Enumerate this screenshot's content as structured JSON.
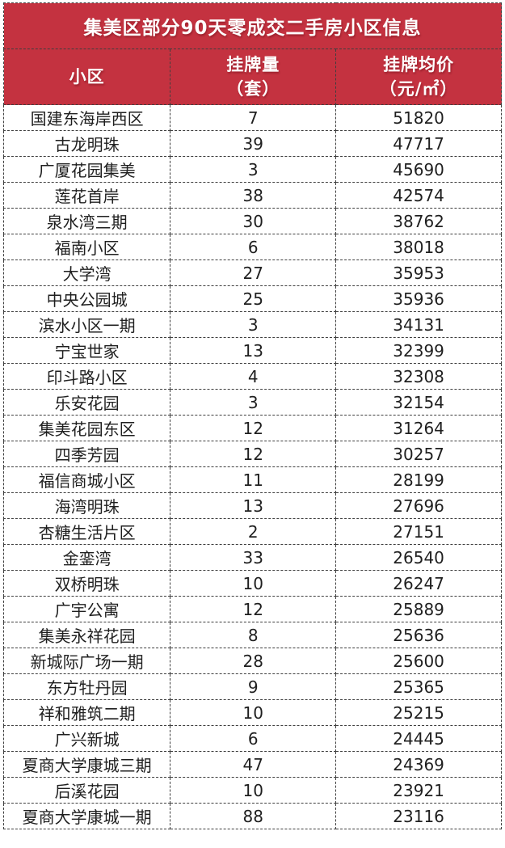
{
  "title": "集美区部分90天零成交二手房小区信息",
  "header": {
    "columns": [
      {
        "line1": "小区",
        "line2": ""
      },
      {
        "line1": "挂牌量",
        "line2": "（套）"
      },
      {
        "line1": "挂牌均价",
        "line2": "（元/㎡）"
      }
    ]
  },
  "colors": {
    "header_bg": "#c43240",
    "header_text": "#ffffff",
    "body_text": "#1f1f1f",
    "border": "#3f3f3f",
    "row_bg": "#ffffff"
  },
  "chart_data": {
    "type": "table",
    "title": "集美区部分90天零成交二手房小区信息",
    "columns": [
      "小区",
      "挂牌量（套）",
      "挂牌均价（元/㎡）"
    ],
    "rows": [
      [
        "国建东海岸西区",
        7,
        51820
      ],
      [
        "古龙明珠",
        39,
        47717
      ],
      [
        "广厦花园集美",
        3,
        45690
      ],
      [
        "莲花首岸",
        38,
        42574
      ],
      [
        "泉水湾三期",
        30,
        38762
      ],
      [
        "福南小区",
        6,
        38018
      ],
      [
        "大学湾",
        27,
        35953
      ],
      [
        "中央公园城",
        25,
        35936
      ],
      [
        "滨水小区一期",
        3,
        34131
      ],
      [
        "宁宝世家",
        13,
        32399
      ],
      [
        "印斗路小区",
        4,
        32308
      ],
      [
        "乐安花园",
        3,
        32154
      ],
      [
        "集美花园东区",
        12,
        31264
      ],
      [
        "四季芳园",
        12,
        30257
      ],
      [
        "福信商城小区",
        11,
        28199
      ],
      [
        "海湾明珠",
        13,
        27696
      ],
      [
        "杏糖生活片区",
        2,
        27151
      ],
      [
        "金銮湾",
        33,
        26540
      ],
      [
        "双桥明珠",
        10,
        26247
      ],
      [
        "广宇公寓",
        12,
        25889
      ],
      [
        "集美永祥花园",
        8,
        25636
      ],
      [
        "新城际广场一期",
        28,
        25600
      ],
      [
        "东方牡丹园",
        9,
        25365
      ],
      [
        "祥和雅筑二期",
        10,
        25215
      ],
      [
        "广兴新城",
        6,
        24445
      ],
      [
        "夏商大学康城三期",
        47,
        24369
      ],
      [
        "后溪花园",
        10,
        23921
      ],
      [
        "夏商大学康城一期",
        88,
        23116
      ]
    ]
  }
}
